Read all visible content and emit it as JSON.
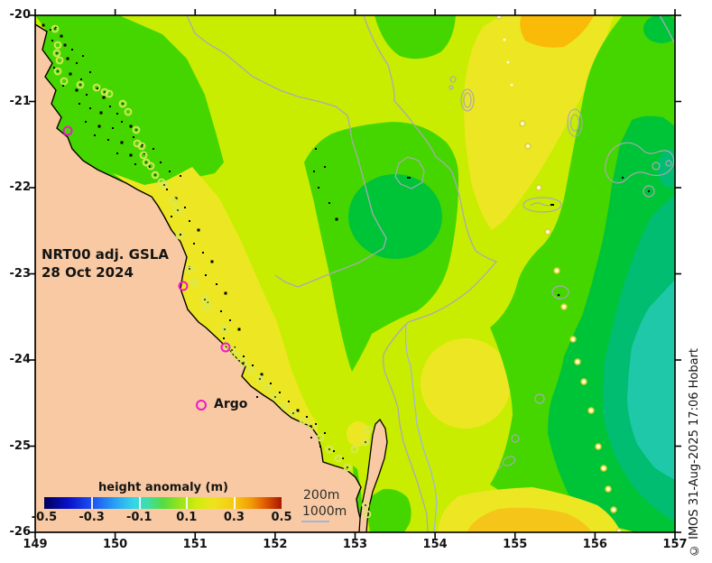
{
  "header": {
    "title_line1": "NRT00 adj. GSLA",
    "title_line2": "28 Oct 2024"
  },
  "legend": {
    "argo_label": "Argo"
  },
  "depth_legend": {
    "label_200m": "200m",
    "label_1000m": "1000m"
  },
  "colorbar": {
    "title": "height anomaly (m)",
    "tick_labels": [
      "-0.5",
      "-0.3",
      "-0.1",
      "0.1",
      "0.3",
      "0.5"
    ],
    "range": [
      -0.5,
      0.5
    ]
  },
  "axes": {
    "x_ticks": [
      "149",
      "150",
      "151",
      "152",
      "153",
      "154",
      "155",
      "156",
      "157"
    ],
    "y_ticks": [
      "-20",
      "-21",
      "-22",
      "-23",
      "-24",
      "-25",
      "-26"
    ],
    "x_range": [
      149,
      157
    ],
    "y_range": [
      -26,
      -20
    ]
  },
  "copyright": {
    "text": "© IMOS 31-Aug-2025 17:06 Hobart"
  },
  "colors": {
    "land": "#f8c9a2",
    "coastline": "#000000",
    "band_yellow_green": "#c9ed00",
    "band_green": "#45d600",
    "band_dark_green": "#00c438",
    "band_teal_green": "#00bd72",
    "band_cyan": "#1ec8a8",
    "band_yellow": "#ede723",
    "band_gold": "#f6c51a",
    "band_orange": "#f9bb07",
    "contour_gray": "#a9a9b4",
    "contour_blue": "#9fb6dc",
    "argo_marker": "#f018c8",
    "coastal_dot_ring": "#d6e95a",
    "track_dot_ring": "#d9cf2e"
  },
  "markers": {
    "argo_floats": [
      [
        75,
        145
      ],
      [
        203,
        317
      ],
      [
        250,
        385
      ]
    ],
    "coastal_dots": [
      [
        61,
        32
      ],
      [
        64,
        50
      ],
      [
        63,
        59
      ],
      [
        66,
        67
      ],
      [
        64,
        79
      ],
      [
        71,
        90
      ],
      [
        89,
        94
      ],
      [
        107,
        97
      ],
      [
        116,
        102
      ],
      [
        121,
        104
      ],
      [
        136,
        115
      ],
      [
        142,
        124
      ],
      [
        151,
        144
      ],
      [
        152,
        159
      ],
      [
        157,
        162
      ],
      [
        159,
        172
      ],
      [
        162,
        180
      ],
      [
        167,
        184
      ],
      [
        172,
        194
      ],
      [
        179,
        202
      ],
      [
        182,
        205
      ],
      [
        192,
        223
      ],
      [
        197,
        233
      ],
      [
        199,
        261
      ],
      [
        210,
        298
      ],
      [
        215,
        313
      ],
      [
        227,
        332
      ],
      [
        230,
        340
      ],
      [
        249,
        365
      ],
      [
        252,
        383
      ],
      [
        257,
        388
      ],
      [
        263,
        395
      ],
      [
        270,
        402
      ],
      [
        278,
        410
      ],
      [
        288,
        420
      ],
      [
        296,
        430
      ],
      [
        305,
        440
      ],
      [
        315,
        450
      ],
      [
        325,
        458
      ],
      [
        336,
        466
      ],
      [
        345,
        472
      ],
      [
        355,
        485
      ],
      [
        365,
        498
      ],
      [
        375,
        508
      ],
      [
        385,
        518
      ],
      [
        393,
        498
      ],
      [
        405,
        490
      ],
      [
        408,
        476
      ],
      [
        405,
        560
      ],
      [
        407,
        570
      ]
    ],
    "track_dots": [
      [
        553,
        18
      ],
      [
        579,
        137
      ],
      [
        585,
        162
      ],
      [
        597,
        208
      ],
      [
        607,
        257
      ],
      [
        617,
        300
      ],
      [
        625,
        340
      ],
      [
        635,
        376
      ],
      [
        640,
        401
      ],
      [
        647,
        423
      ],
      [
        655,
        455
      ],
      [
        663,
        495
      ],
      [
        669,
        519
      ],
      [
        674,
        542
      ],
      [
        680,
        565
      ],
      [
        686,
        589
      ]
    ],
    "small_dots": [
      [
        559,
        44
      ],
      [
        563,
        69
      ],
      [
        567,
        94
      ]
    ]
  },
  "map_features": {
    "islands": [
      [
        48,
        28,
        3
      ],
      [
        56,
        33,
        2
      ],
      [
        62,
        30,
        2
      ],
      [
        68,
        40,
        3
      ],
      [
        58,
        45,
        2
      ],
      [
        72,
        50,
        3
      ],
      [
        80,
        55,
        2
      ],
      [
        66,
        58,
        2
      ],
      [
        75,
        65,
        3
      ],
      [
        85,
        70,
        2
      ],
      [
        92,
        62,
        2
      ],
      [
        60,
        75,
        2
      ],
      [
        78,
        82,
        3
      ],
      [
        90,
        88,
        2
      ],
      [
        100,
        80,
        2
      ],
      [
        70,
        95,
        2
      ],
      [
        85,
        100,
        3
      ],
      [
        96,
        105,
        2
      ],
      [
        108,
        98,
        2
      ],
      [
        115,
        108,
        3
      ],
      [
        88,
        115,
        2
      ],
      [
        100,
        120,
        2
      ],
      [
        112,
        125,
        3
      ],
      [
        122,
        118,
        2
      ],
      [
        130,
        126,
        2
      ],
      [
        95,
        135,
        2
      ],
      [
        110,
        140,
        3
      ],
      [
        125,
        142,
        2
      ],
      [
        135,
        135,
        2
      ],
      [
        145,
        140,
        3
      ],
      [
        105,
        150,
        2
      ],
      [
        120,
        155,
        2
      ],
      [
        135,
        158,
        3
      ],
      [
        148,
        152,
        2
      ],
      [
        158,
        160,
        2
      ],
      [
        130,
        170,
        2
      ],
      [
        145,
        172,
        3
      ],
      [
        160,
        170,
        2
      ],
      [
        170,
        165,
        2
      ],
      [
        150,
        182,
        2
      ],
      [
        165,
        185,
        3
      ],
      [
        178,
        180,
        2
      ],
      [
        188,
        190,
        2
      ],
      [
        200,
        195,
        2
      ],
      [
        185,
        210,
        2
      ],
      [
        195,
        220,
        3
      ],
      [
        205,
        230,
        2
      ],
      [
        190,
        240,
        2
      ],
      [
        210,
        245,
        2
      ],
      [
        220,
        255,
        3
      ],
      [
        200,
        260,
        2
      ],
      [
        215,
        270,
        2
      ],
      [
        225,
        280,
        2
      ],
      [
        235,
        290,
        3
      ],
      [
        210,
        295,
        2
      ],
      [
        228,
        305,
        2
      ],
      [
        240,
        315,
        2
      ],
      [
        250,
        325,
        3
      ],
      [
        230,
        335,
        2
      ],
      [
        245,
        345,
        2
      ],
      [
        255,
        355,
        2
      ],
      [
        265,
        365,
        3
      ],
      [
        248,
        375,
        2
      ],
      [
        260,
        385,
        2
      ],
      [
        270,
        395,
        2
      ],
      [
        280,
        405,
        2
      ],
      [
        290,
        415,
        3
      ],
      [
        300,
        425,
        2
      ],
      [
        310,
        435,
        2
      ],
      [
        285,
        440,
        2
      ],
      [
        320,
        445,
        2
      ],
      [
        330,
        455,
        3
      ],
      [
        340,
        462,
        2
      ],
      [
        350,
        470,
        2
      ],
      [
        360,
        480,
        2
      ],
      [
        345,
        485,
        2
      ],
      [
        355,
        495,
        2
      ],
      [
        370,
        500,
        2
      ],
      [
        380,
        508,
        2
      ],
      [
        350,
        165,
        2
      ],
      [
        360,
        185,
        2
      ],
      [
        348,
        190,
        2
      ],
      [
        353,
        208,
        2
      ],
      [
        373,
        243,
        3
      ],
      [
        365,
        225,
        2
      ]
    ]
  }
}
